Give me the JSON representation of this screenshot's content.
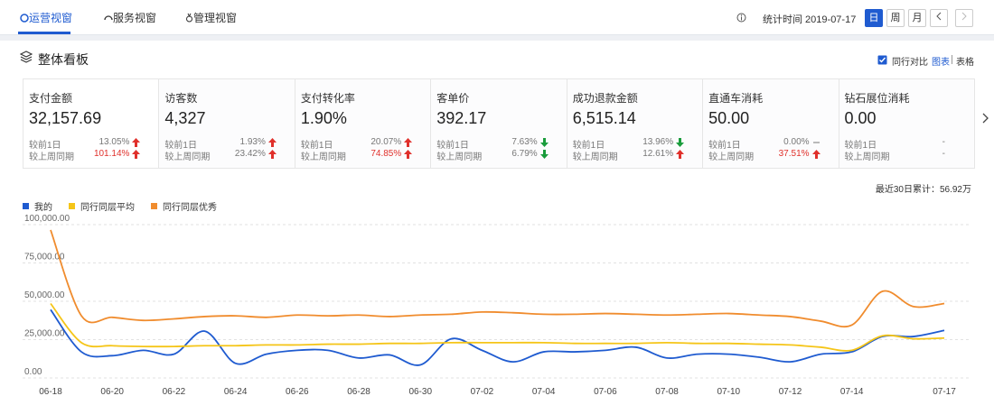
{
  "tabs": [
    "运营视窗",
    "服务视窗",
    "管理视窗"
  ],
  "header": {
    "stat_time": "统计时间 2019-07-17",
    "periods": [
      "日",
      "周",
      "月"
    ],
    "active_period": 0
  },
  "panel": {
    "title": "整体看板",
    "compare": "同行对比",
    "views": [
      "图表",
      "表格"
    ],
    "total": "最近30日累计：56.92万"
  },
  "kpis": [
    {
      "title": "支付金额",
      "value": "32,157.69",
      "rows": [
        {
          "label": "较前1日",
          "pct": "13.05%",
          "trend": "up"
        },
        {
          "label": "较上周同期",
          "pct": "101.14%",
          "trend": "up",
          "hot": true
        }
      ]
    },
    {
      "title": "访客数",
      "value": "4,327",
      "rows": [
        {
          "label": "较前1日",
          "pct": "1.93%",
          "trend": "up"
        },
        {
          "label": "较上周同期",
          "pct": "23.42%",
          "trend": "up"
        }
      ]
    },
    {
      "title": "支付转化率",
      "value": "1.90%",
      "rows": [
        {
          "label": "较前1日",
          "pct": "20.07%",
          "trend": "up"
        },
        {
          "label": "较上周同期",
          "pct": "74.85%",
          "trend": "up",
          "hot": true
        }
      ]
    },
    {
      "title": "客单价",
      "value": "392.17",
      "rows": [
        {
          "label": "较前1日",
          "pct": "7.63%",
          "trend": "down"
        },
        {
          "label": "较上周同期",
          "pct": "6.79%",
          "trend": "down"
        }
      ]
    },
    {
      "title": "成功退款金额",
      "value": "6,515.14",
      "rows": [
        {
          "label": "较前1日",
          "pct": "13.96%",
          "trend": "down"
        },
        {
          "label": "较上周同期",
          "pct": "12.61%",
          "trend": "up"
        }
      ]
    },
    {
      "title": "直通车消耗",
      "value": "50.00",
      "rows": [
        {
          "label": "较前1日",
          "pct": "0.00%",
          "trend": "flat"
        },
        {
          "label": "较上周同期",
          "pct": "37.51%",
          "trend": "up",
          "hot": true
        }
      ]
    },
    {
      "title": "钻石展位消耗",
      "value": "0.00",
      "rows": [
        {
          "label": "较前1日",
          "pct": "-"
        },
        {
          "label": "较上周同期",
          "pct": "-"
        }
      ]
    }
  ],
  "chart_data": {
    "type": "line",
    "x": [
      "06-18",
      null,
      "06-20",
      null,
      "06-22",
      null,
      "06-24",
      null,
      "06-26",
      null,
      "06-28",
      null,
      "06-30",
      null,
      "07-02",
      null,
      "07-04",
      null,
      "07-06",
      null,
      "07-08",
      null,
      "07-10",
      null,
      "07-12",
      null,
      "07-14",
      null,
      null,
      "07-17"
    ],
    "ylim": [
      0,
      100000
    ],
    "yticks": [
      {
        "value": 0,
        "label": "0.00"
      },
      {
        "value": 25000,
        "label": "25,000.00"
      },
      {
        "value": 50000,
        "label": "50,000.00"
      },
      {
        "value": 75000,
        "label": "75,000.00"
      },
      {
        "value": 100000,
        "label": "100,000.00"
      }
    ],
    "grid": true,
    "series": [
      {
        "name": "我的",
        "color": "#1f5bd0",
        "values": [
          41000,
          13500,
          11000,
          14500,
          12000,
          27000,
          6000,
          12000,
          14500,
          14500,
          9500,
          11500,
          5000,
          22000,
          14500,
          7000,
          13500,
          13500,
          14500,
          16500,
          9500,
          12000,
          12000,
          10000,
          7000,
          12000,
          13500,
          23500,
          23500,
          27500
        ]
      },
      {
        "name": "同行同层平均",
        "color": "#f5c518",
        "values": [
          45000,
          19500,
          17500,
          17000,
          17000,
          17500,
          17500,
          18000,
          18000,
          18500,
          18500,
          19000,
          19000,
          19500,
          19500,
          19500,
          19500,
          19000,
          19000,
          19000,
          19500,
          19000,
          19000,
          18500,
          18000,
          16500,
          14500,
          24000,
          22000,
          22500
        ]
      },
      {
        "name": "同行同层优秀",
        "color": "#f08c2e",
        "values": [
          93000,
          37000,
          36000,
          34000,
          35000,
          36500,
          37000,
          36000,
          37500,
          37000,
          37500,
          36500,
          37500,
          38000,
          39500,
          39000,
          38000,
          38000,
          38500,
          38000,
          37500,
          38000,
          38500,
          37500,
          36500,
          33500,
          31000,
          53000,
          43000,
          45000
        ]
      }
    ]
  }
}
